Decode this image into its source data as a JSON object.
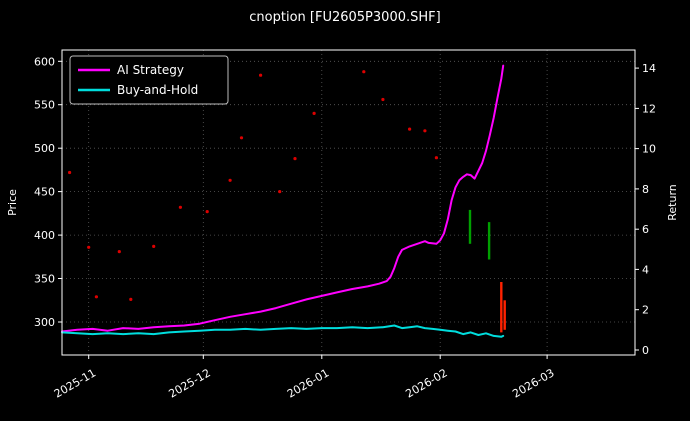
{
  "chart_data": {
    "type": "line",
    "title": "cnoption [FU2605P3000.SHF]",
    "ylabel_left": "Price",
    "ylabel_right": "Return",
    "x_axis": {
      "note": "x values are days since 2025-10-25",
      "tick_labels": [
        "2025-11",
        "2025-12",
        "2026-01",
        "2026-02",
        "2026-03"
      ],
      "tick_days": [
        7,
        37,
        68,
        99,
        127
      ],
      "range_days": [
        0,
        150
      ]
    },
    "y_axis_left": {
      "ticks": [
        300,
        350,
        400,
        450,
        500,
        550,
        600
      ],
      "range": [
        262,
        613
      ]
    },
    "y_axis_right": {
      "ticks": [
        0,
        2,
        4,
        6,
        8,
        10,
        12,
        14
      ],
      "range": [
        -0.25,
        14.9
      ]
    },
    "legend": [
      {
        "label": "AI Strategy",
        "color": "#ff00ff"
      },
      {
        "label": "Buy-and-Hold",
        "color": "#00dddd"
      }
    ],
    "series": [
      {
        "name": "AI Strategy",
        "color": "#ff00ff",
        "width": 2,
        "points": [
          [
            0,
            289
          ],
          [
            4,
            291
          ],
          [
            8,
            292
          ],
          [
            12,
            290
          ],
          [
            16,
            293
          ],
          [
            20,
            292
          ],
          [
            24,
            294
          ],
          [
            28,
            295
          ],
          [
            32,
            296
          ],
          [
            36,
            298
          ],
          [
            40,
            302
          ],
          [
            44,
            306
          ],
          [
            48,
            309
          ],
          [
            52,
            312
          ],
          [
            56,
            316
          ],
          [
            60,
            321
          ],
          [
            64,
            326
          ],
          [
            68,
            330
          ],
          [
            72,
            334
          ],
          [
            76,
            338
          ],
          [
            80,
            341
          ],
          [
            83,
            344
          ],
          [
            85,
            347
          ],
          [
            86,
            352
          ],
          [
            87,
            362
          ],
          [
            88,
            375
          ],
          [
            89,
            383
          ],
          [
            91,
            387
          ],
          [
            93,
            390
          ],
          [
            95,
            393
          ],
          [
            96,
            391
          ],
          [
            98,
            390
          ],
          [
            99,
            394
          ],
          [
            100,
            402
          ],
          [
            101,
            418
          ],
          [
            102,
            440
          ],
          [
            103,
            455
          ],
          [
            104,
            463
          ],
          [
            105,
            467
          ],
          [
            106,
            470
          ],
          [
            107,
            469
          ],
          [
            108,
            465
          ],
          [
            109,
            474
          ],
          [
            110,
            483
          ],
          [
            111,
            497
          ],
          [
            112,
            515
          ],
          [
            113,
            535
          ],
          [
            114,
            558
          ],
          [
            115,
            580
          ],
          [
            115.5,
            595
          ]
        ]
      },
      {
        "name": "Buy-and-Hold",
        "color": "#00dddd",
        "width": 2,
        "points": [
          [
            0,
            288
          ],
          [
            4,
            287
          ],
          [
            8,
            286
          ],
          [
            12,
            287
          ],
          [
            16,
            286
          ],
          [
            20,
            287
          ],
          [
            24,
            286
          ],
          [
            28,
            288
          ],
          [
            32,
            289
          ],
          [
            36,
            290
          ],
          [
            40,
            291
          ],
          [
            44,
            291
          ],
          [
            48,
            292
          ],
          [
            52,
            291
          ],
          [
            56,
            292
          ],
          [
            60,
            293
          ],
          [
            64,
            292
          ],
          [
            68,
            293
          ],
          [
            72,
            293
          ],
          [
            76,
            294
          ],
          [
            80,
            293
          ],
          [
            84,
            294
          ],
          [
            87,
            296
          ],
          [
            89,
            293
          ],
          [
            91,
            294
          ],
          [
            93,
            295
          ],
          [
            95,
            293
          ],
          [
            97,
            292
          ],
          [
            99,
            291
          ],
          [
            101,
            290
          ],
          [
            103,
            289
          ],
          [
            105,
            286
          ],
          [
            107,
            288
          ],
          [
            109,
            285
          ],
          [
            111,
            287
          ],
          [
            113,
            284
          ],
          [
            115,
            283
          ],
          [
            115.5,
            284
          ]
        ]
      }
    ],
    "scatter": {
      "name": "signal-dots",
      "color": "#dd0000",
      "radius": 1.6,
      "points": [
        [
          2,
          472
        ],
        [
          7,
          386
        ],
        [
          15,
          381
        ],
        [
          24,
          387
        ],
        [
          9,
          329
        ],
        [
          18,
          326
        ],
        [
          31,
          432
        ],
        [
          38,
          427
        ],
        [
          44,
          463
        ],
        [
          47,
          512
        ],
        [
          52,
          584
        ],
        [
          57,
          450
        ],
        [
          61,
          488
        ],
        [
          66,
          540
        ],
        [
          79,
          588
        ],
        [
          84,
          556
        ],
        [
          91,
          522
        ],
        [
          95,
          520
        ],
        [
          98,
          489
        ]
      ]
    },
    "bars": [
      {
        "color": "#00a000",
        "day": 106.8,
        "low": 390,
        "high": 429
      },
      {
        "color": "#00a000",
        "day": 111.8,
        "low": 372,
        "high": 415
      },
      {
        "color": "#ff2200",
        "day": 115.0,
        "low": 288,
        "high": 346
      },
      {
        "color": "#ff2200",
        "day": 115.9,
        "low": 291,
        "high": 325
      }
    ],
    "colors": {
      "background": "#000000",
      "text": "#ffffff",
      "grid": "#5a5a5a",
      "axis": "#ffffff"
    }
  }
}
